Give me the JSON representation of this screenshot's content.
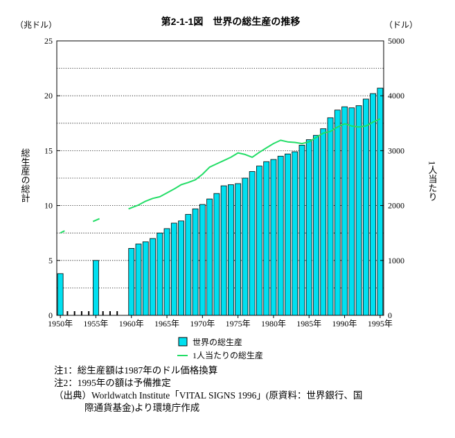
{
  "chart_data": {
    "type": "bar+line",
    "title": "第2-1-1図　世界の総生産の推移",
    "left_axis": {
      "unit": "（兆ドル）",
      "label": "総生産の総計",
      "ylim": [
        0,
        25
      ],
      "ticks": [
        0,
        5,
        10,
        15,
        20,
        25
      ]
    },
    "right_axis": {
      "unit": "（ドル）",
      "label": "1人当たり",
      "ylim": [
        0,
        5000
      ],
      "ticks": [
        0,
        1000,
        2000,
        3000,
        4000,
        5000
      ]
    },
    "x_ticks": [
      "1950年",
      "1955年",
      "1960年",
      "1965年",
      "1970年",
      "1975年",
      "1980年",
      "1985年",
      "1990年",
      "1995年"
    ],
    "x_tick_years": [
      1950,
      1955,
      1960,
      1965,
      1970,
      1975,
      1980,
      1985,
      1990,
      1995
    ],
    "xlim": [
      1949.5,
      1995.5
    ],
    "grid": "horizontal dotted",
    "series": [
      {
        "name": "世界の総生産",
        "kind": "bar",
        "axis": "left",
        "color": "#00e0f0",
        "points": [
          [
            1950,
            3.8
          ],
          [
            1955,
            5.0
          ],
          [
            1960,
            6.1
          ],
          [
            1961,
            6.5
          ],
          [
            1962,
            6.7
          ],
          [
            1963,
            7.0
          ],
          [
            1964,
            7.5
          ],
          [
            1965,
            7.9
          ],
          [
            1966,
            8.4
          ],
          [
            1967,
            8.6
          ],
          [
            1968,
            9.2
          ],
          [
            1969,
            9.7
          ],
          [
            1970,
            10.1
          ],
          [
            1971,
            10.6
          ],
          [
            1972,
            11.1
          ],
          [
            1973,
            11.8
          ],
          [
            1974,
            11.9
          ],
          [
            1975,
            12.0
          ],
          [
            1976,
            12.5
          ],
          [
            1977,
            13.1
          ],
          [
            1978,
            13.6
          ],
          [
            1979,
            14.0
          ],
          [
            1980,
            14.2
          ],
          [
            1981,
            14.5
          ],
          [
            1982,
            14.7
          ],
          [
            1983,
            14.9
          ],
          [
            1984,
            15.5
          ],
          [
            1985,
            16.0
          ],
          [
            1986,
            16.4
          ],
          [
            1987,
            17.0
          ],
          [
            1988,
            18.0
          ],
          [
            1989,
            18.7
          ],
          [
            1990,
            19.0
          ],
          [
            1991,
            18.9
          ],
          [
            1992,
            19.1
          ],
          [
            1993,
            19.7
          ],
          [
            1994,
            20.2
          ],
          [
            1995,
            20.7
          ]
        ]
      },
      {
        "name": "1人当たりの総生産",
        "kind": "line",
        "axis": "right",
        "color": "#22dd66",
        "segments": [
          [
            [
              1950,
              1500
            ],
            [
              1950.6,
              1540
            ]
          ],
          [
            [
              1954.6,
              1710
            ],
            [
              1955.5,
              1760
            ]
          ],
          [
            [
              1959.6,
              1940
            ],
            [
              1960,
              1960
            ],
            [
              1961,
              2010
            ],
            [
              1962,
              2080
            ],
            [
              1963,
              2130
            ],
            [
              1964,
              2160
            ],
            [
              1965,
              2230
            ],
            [
              1966,
              2300
            ],
            [
              1967,
              2380
            ],
            [
              1968,
              2420
            ],
            [
              1969,
              2470
            ],
            [
              1970,
              2570
            ],
            [
              1971,
              2700
            ],
            [
              1972,
              2760
            ],
            [
              1973,
              2820
            ],
            [
              1974,
              2880
            ],
            [
              1975,
              2960
            ],
            [
              1976,
              2930
            ],
            [
              1977,
              2880
            ],
            [
              1978,
              2970
            ],
            [
              1979,
              3050
            ],
            [
              1980,
              3130
            ],
            [
              1981,
              3190
            ],
            [
              1982,
              3160
            ],
            [
              1983,
              3150
            ],
            [
              1984,
              3130
            ],
            [
              1985,
              3160
            ],
            [
              1986,
              3240
            ],
            [
              1987,
              3320
            ],
            [
              1988,
              3350
            ],
            [
              1989,
              3430
            ],
            [
              1990,
              3490
            ],
            [
              1991,
              3450
            ],
            [
              1992,
              3430
            ],
            [
              1993,
              3450
            ],
            [
              1994,
              3520
            ],
            [
              1995,
              3580
            ]
          ]
        ]
      }
    ],
    "legend": {
      "placement": "bottom-center",
      "items": [
        "世界の総生産",
        "1人当たりの総生産"
      ]
    },
    "axis_break_years": [
      1951,
      1952,
      1953,
      1954,
      1956,
      1957,
      1958
    ]
  },
  "notes": {
    "note1": "注1：総生産額は1987年のドル価格換算",
    "note2": "注2：1995年の額は予備推定",
    "source_line1": "（出典）Worldwatch Institute「VITAL SIGNS 1996」(原資料：世界銀行、国",
    "source_line2": "際通貨基金)より環境庁作成"
  }
}
